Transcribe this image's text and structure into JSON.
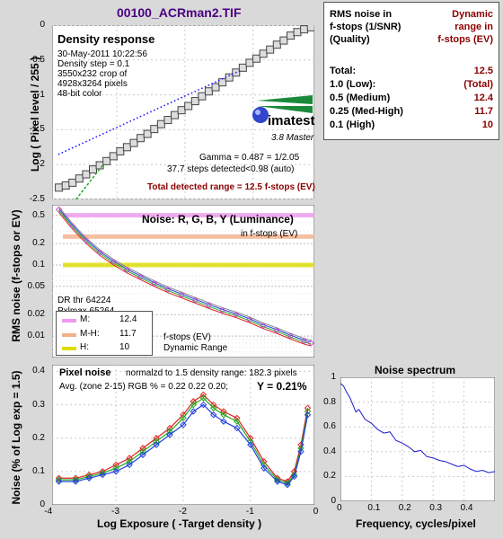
{
  "title": "00100_ACRman2.TIF",
  "table": {
    "header_left": [
      "RMS noise in",
      "f-stops (1/SNR)",
      "(Quality)"
    ],
    "header_right": [
      "Dynamic",
      "range in",
      "f-stops (EV)"
    ],
    "rows": [
      {
        "label": "Total:",
        "value": "12.5"
      },
      {
        "label": "1.0  (Low):",
        "value": "(Total)"
      },
      {
        "label": "0.5  (Medium)",
        "value": "12.4"
      },
      {
        "label": "0.25 (Med-High)",
        "value": "11.7"
      },
      {
        "label": "0.1  (High)",
        "value": "10"
      }
    ]
  },
  "density": {
    "title": "Density response",
    "info": [
      "30-May-2011 10:22:56",
      "Density step = 0.1",
      "3550x232 crop of",
      "4928x3264 pixels",
      "48-bit color"
    ],
    "brand": "imatest",
    "brand_sub": "3.8  Master",
    "gamma": "Gamma = 0.487 = 1/2.05",
    "steps": "37.7 steps detected<0.98 (auto)",
    "range": "Total detected range = 12.5 f-stops (EV)",
    "ylabel": "Log ( Pixel level / 255 )",
    "yticks": [
      "0",
      "-0.5",
      "-1",
      "-1.5",
      "-2",
      "-2.5"
    ]
  },
  "noise": {
    "title": "Noise: R, G, B, Y (Luminance)",
    "subtitle": "in f-stops (EV)",
    "ylabel": "RMS noise (f-stops or EV)",
    "yticks": [
      "0.5",
      "0.2",
      "0.1",
      "0.05",
      "0.02",
      "0.01"
    ],
    "dr_thr": "DR thr 64224",
    "pxlmax": "Pxlmax 65264",
    "legend": [
      {
        "label": "M:",
        "value": "12.4",
        "color": "#ee99ee"
      },
      {
        "label": "M-H:",
        "value": "11.7",
        "color": "#f4b08a"
      },
      {
        "label": "H:",
        "value": "10",
        "color": "#dddd00"
      }
    ],
    "fstops": "f-stops (EV)",
    "dr": "Dynamic Range"
  },
  "pixel": {
    "title": "Pixel noise",
    "normalized": "normalzd to 1.5 density range: 182.3 pixels",
    "avg": "Avg. (zone 2-15) RGB % = 0.22  0.22  0.20;",
    "y": "Y = 0.21%",
    "ylabel": "Noise (% of Log exp = 1.5)",
    "xlabel": "Log Exposure ( -Target density )",
    "yticks": [
      "0.4",
      "0.3",
      "0.2",
      "0.1",
      "0"
    ],
    "xticks": [
      "-4",
      "-3",
      "-2",
      "-1",
      "0"
    ]
  },
  "spectrum": {
    "title": "Noise spectrum",
    "xlabel": "Frequency, cycles/pixel",
    "yticks": [
      "1",
      "0.8",
      "0.6",
      "0.4",
      "0.2",
      "0"
    ],
    "xticks": [
      "0",
      "0.1",
      "0.2",
      "0.3",
      "0.4"
    ]
  },
  "chart_data": [
    {
      "type": "line",
      "title": "Density response",
      "ylabel": "Log ( Pixel level / 255 )",
      "ylim": [
        -2.5,
        0
      ],
      "xlim": [
        -3.95,
        -0.1
      ],
      "series": [
        {
          "x": [
            -3.85,
            -3.75,
            -3.65,
            -3.55,
            -3.45,
            -3.35,
            -3.25,
            -3.15,
            -3.05,
            -2.95,
            -2.85,
            -2.75,
            -2.65,
            -2.55,
            -2.45,
            -2.35,
            -2.25,
            -2.15,
            -2.05,
            -1.95,
            -1.85,
            -1.75,
            -1.65,
            -1.55,
            -1.45,
            -1.35,
            -1.25,
            -1.15,
            -1.05,
            -0.95,
            -0.85,
            -0.75,
            -0.65,
            -0.55,
            -0.45,
            -0.35,
            -0.25,
            -0.15
          ],
          "y": [
            -2.33,
            -2.3,
            -2.26,
            -2.2,
            -2.14,
            -2.07,
            -2.01,
            -1.95,
            -1.88,
            -1.81,
            -1.75,
            -1.69,
            -1.62,
            -1.56,
            -1.49,
            -1.42,
            -1.36,
            -1.29,
            -1.22,
            -1.16,
            -1.09,
            -1.02,
            -0.95,
            -0.89,
            -0.82,
            -0.75,
            -0.68,
            -0.61,
            -0.54,
            -0.48,
            -0.41,
            -0.35,
            -0.28,
            -0.22,
            -0.15,
            -0.1,
            -0.06,
            -0.03
          ]
        }
      ]
    },
    {
      "type": "line",
      "title": "Noise: R, G, B, Y (Luminance)",
      "ylabel": "RMS noise (f-stops or EV)",
      "yscale": "log",
      "ylim": [
        0.005,
        0.7
      ],
      "series": [
        {
          "name": "Y",
          "x": [
            -3.85,
            -3.65,
            -3.45,
            -3.25,
            -3.05,
            -2.85,
            -2.65,
            -2.45,
            -2.25,
            -2.05,
            -1.85,
            -1.65,
            -1.45,
            -1.25,
            -1.05,
            -0.85,
            -0.65,
            -0.45,
            -0.25,
            -0.15
          ],
          "y": [
            0.6,
            0.35,
            0.22,
            0.15,
            0.11,
            0.085,
            0.068,
            0.055,
            0.045,
            0.038,
            0.032,
            0.027,
            0.023,
            0.02,
            0.017,
            0.014,
            0.012,
            0.01,
            0.0085,
            0.008
          ]
        }
      ],
      "hlines": [
        {
          "name": "M",
          "y": 0.5
        },
        {
          "name": "M-H",
          "y": 0.25
        },
        {
          "name": "H",
          "y": 0.1
        }
      ]
    },
    {
      "type": "line",
      "title": "Pixel noise",
      "xlabel": "Log Exposure ( -Target density )",
      "ylabel": "Noise (% of Log exp = 1.5)",
      "xlim": [
        -3.95,
        -0.05
      ],
      "ylim": [
        0,
        0.42
      ],
      "series": [
        {
          "name": "R",
          "x": [
            -3.85,
            -3.6,
            -3.4,
            -3.2,
            -3.0,
            -2.8,
            -2.6,
            -2.4,
            -2.2,
            -2.0,
            -1.85,
            -1.7,
            -1.55,
            -1.4,
            -1.2,
            -1.0,
            -0.8,
            -0.6,
            -0.45,
            -0.35,
            -0.25,
            -0.15
          ],
          "y": [
            0.08,
            0.08,
            0.09,
            0.1,
            0.12,
            0.14,
            0.17,
            0.2,
            0.23,
            0.27,
            0.31,
            0.33,
            0.3,
            0.28,
            0.26,
            0.2,
            0.13,
            0.08,
            0.07,
            0.1,
            0.18,
            0.29
          ]
        },
        {
          "name": "G",
          "x": [
            -3.85,
            -3.6,
            -3.4,
            -3.2,
            -3.0,
            -2.8,
            -2.6,
            -2.4,
            -2.2,
            -2.0,
            -1.85,
            -1.7,
            -1.55,
            -1.4,
            -1.2,
            -1.0,
            -0.8,
            -0.6,
            -0.45,
            -0.35,
            -0.25,
            -0.15
          ],
          "y": [
            0.075,
            0.075,
            0.085,
            0.095,
            0.11,
            0.13,
            0.16,
            0.19,
            0.22,
            0.26,
            0.3,
            0.32,
            0.29,
            0.27,
            0.25,
            0.19,
            0.12,
            0.075,
            0.065,
            0.09,
            0.17,
            0.28
          ]
        },
        {
          "name": "B",
          "x": [
            -3.85,
            -3.6,
            -3.4,
            -3.2,
            -3.0,
            -2.8,
            -2.6,
            -2.4,
            -2.2,
            -2.0,
            -1.85,
            -1.7,
            -1.55,
            -1.4,
            -1.2,
            -1.0,
            -0.8,
            -0.6,
            -0.45,
            -0.35,
            -0.25,
            -0.15
          ],
          "y": [
            0.07,
            0.07,
            0.08,
            0.09,
            0.1,
            0.12,
            0.15,
            0.18,
            0.21,
            0.24,
            0.28,
            0.3,
            0.27,
            0.25,
            0.23,
            0.18,
            0.11,
            0.07,
            0.06,
            0.085,
            0.16,
            0.27
          ]
        }
      ]
    },
    {
      "type": "line",
      "title": "Noise spectrum",
      "xlabel": "Frequency, cycles/pixel",
      "xlim": [
        0,
        0.5
      ],
      "ylim": [
        0,
        1
      ],
      "series": [
        {
          "x": [
            0,
            0.01,
            0.02,
            0.03,
            0.04,
            0.05,
            0.06,
            0.08,
            0.1,
            0.12,
            0.14,
            0.16,
            0.18,
            0.2,
            0.22,
            0.24,
            0.26,
            0.28,
            0.3,
            0.32,
            0.34,
            0.36,
            0.38,
            0.4,
            0.42,
            0.44,
            0.46,
            0.48,
            0.5
          ],
          "y": [
            0.95,
            0.93,
            0.88,
            0.84,
            0.78,
            0.72,
            0.74,
            0.66,
            0.63,
            0.58,
            0.55,
            0.56,
            0.49,
            0.47,
            0.44,
            0.4,
            0.41,
            0.36,
            0.35,
            0.33,
            0.32,
            0.3,
            0.28,
            0.29,
            0.26,
            0.24,
            0.25,
            0.23,
            0.24
          ]
        }
      ]
    }
  ]
}
